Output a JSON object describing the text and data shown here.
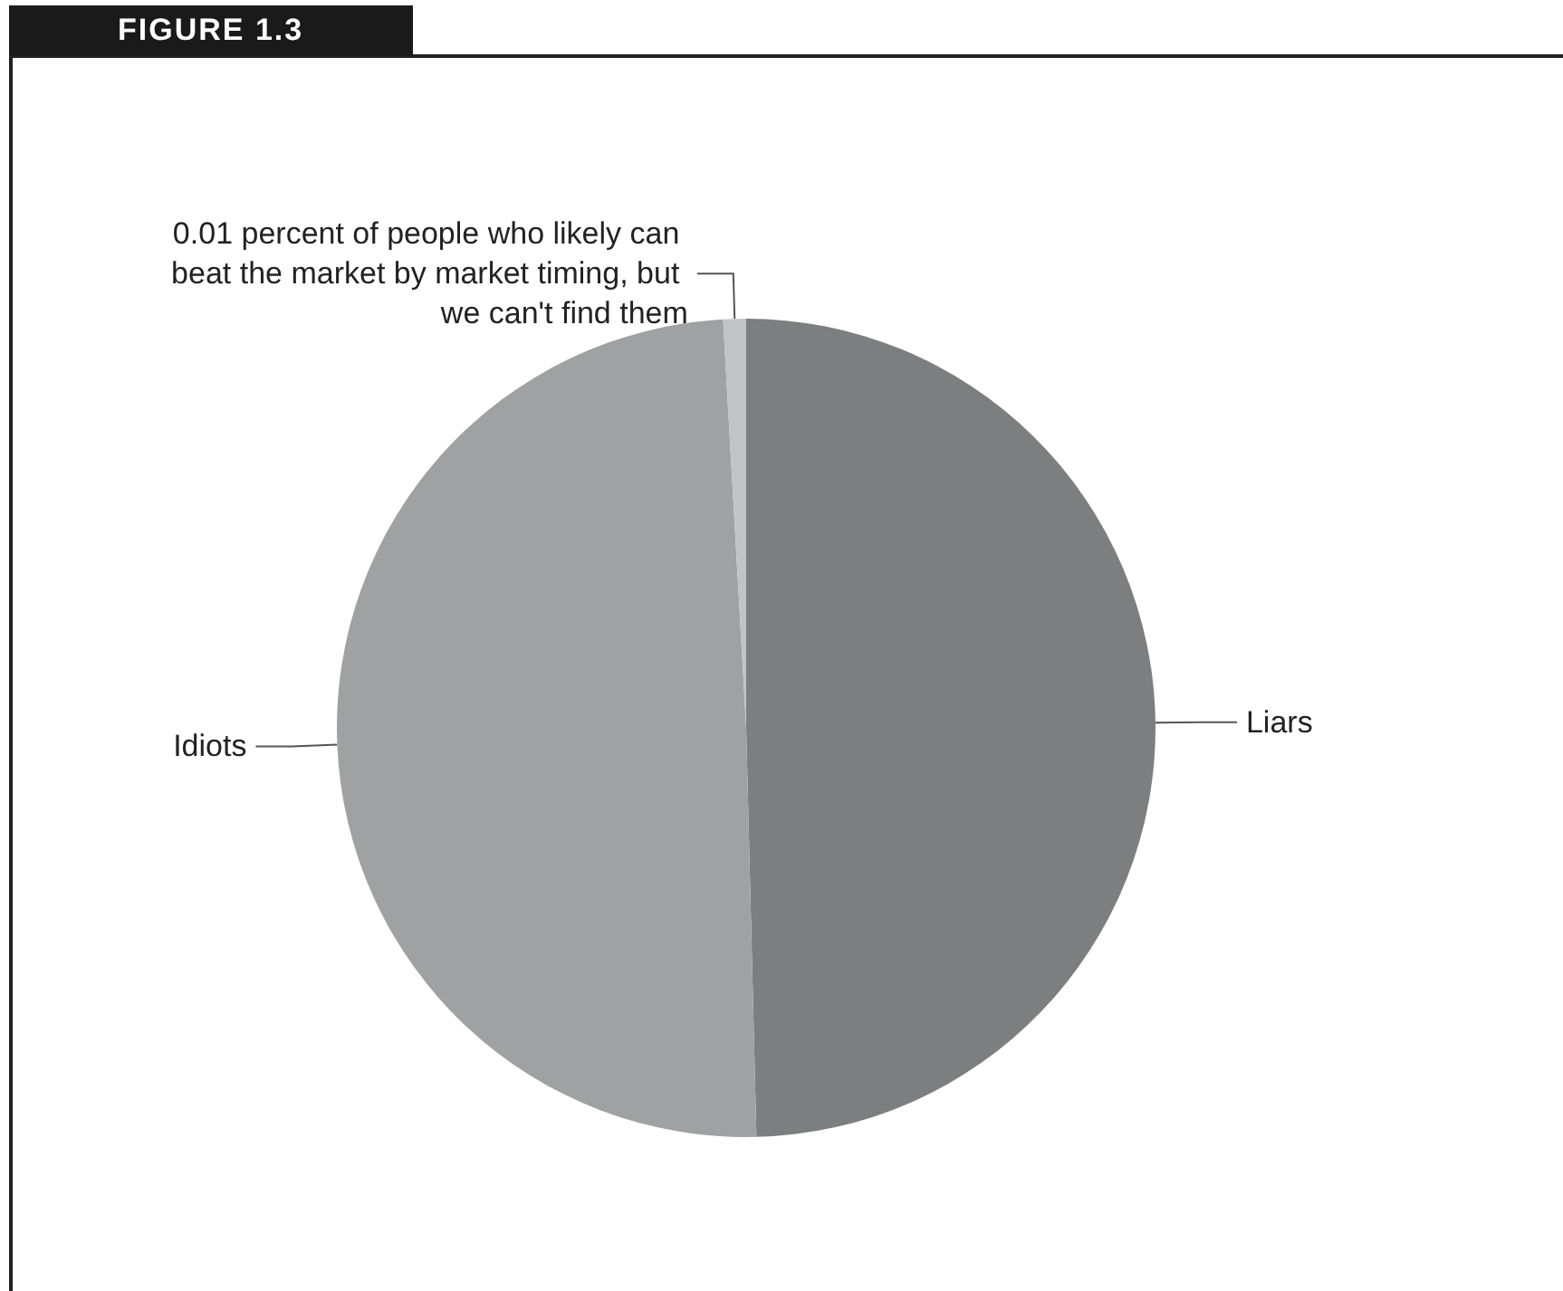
{
  "chart_data": {
    "type": "pie",
    "title": "FIGURE 1.3",
    "categories": [
      "Liars",
      "Idiots",
      "0.01 percent of people who likely can beat the market by market timing, but we can't find them"
    ],
    "values": [
      49.6,
      49.5,
      0.9
    ],
    "colors": [
      "#7d7e80",
      "#a0a1a3",
      "#c2c3c5"
    ]
  }
}
